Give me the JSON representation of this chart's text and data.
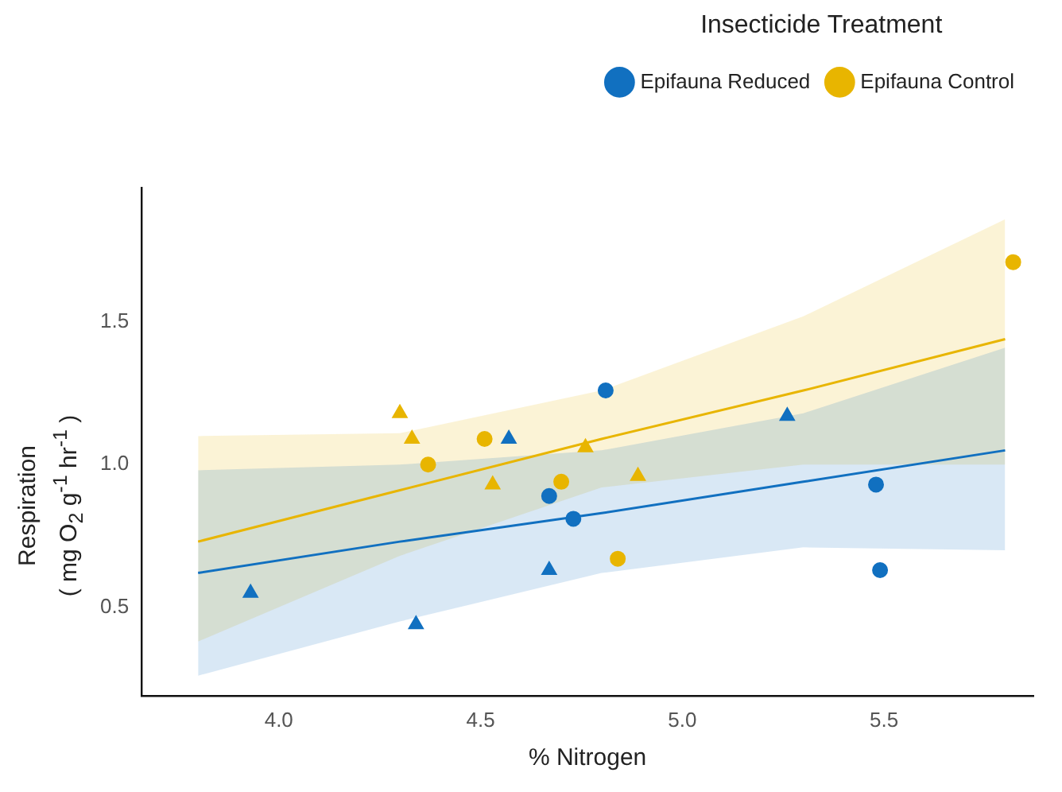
{
  "chart_data": {
    "type": "scatter",
    "xlabel": "% Nitrogen",
    "ylabel": "Respiration\n( mg O$_{2}$ g$^{-1}$ hr$^{-1}$ )",
    "legend_title": "Insecticide Treatment",
    "legend": "top right",
    "grid": false,
    "xlim": [
      3.66,
      5.87
    ],
    "xticks": [
      {
        "value": 4.0,
        "label": "4.0"
      },
      {
        "value": 4.5,
        "label": "4.5"
      },
      {
        "value": 5.0,
        "label": "5.0"
      },
      {
        "value": 5.5,
        "label": "5.5"
      }
    ],
    "ylim": [
      0.19,
      1.97
    ],
    "yticks": [
      0.5,
      {
        "value": 1.0,
        "label": "1.0"
      },
      1.5
    ],
    "series": [
      {
        "name": "Epifauna Reduced",
        "color": "#1170c0",
        "marker": "circle",
        "x": [
          4.81,
          4.67,
          4.73,
          5.48,
          5.49
        ],
        "values": [
          1.26,
          0.89,
          0.81,
          0.93,
          0.63
        ]
      },
      {
        "color": "#1170c0",
        "marker": "triangle",
        "x": [
          3.93,
          4.34,
          4.57,
          4.67,
          5.26
        ],
        "values": [
          0.55,
          0.44,
          1.09,
          0.63,
          1.17
        ]
      },
      {
        "name": "Epifauna Control",
        "color": "#e8b500",
        "marker": "circle",
        "x": [
          4.37,
          4.51,
          4.7,
          4.84,
          5.82
        ],
        "values": [
          1.0,
          1.09,
          0.94,
          0.67,
          1.71
        ]
      },
      {
        "color": "#e8b500",
        "marker": "triangle",
        "x": [
          4.3,
          4.33,
          4.53,
          4.76,
          4.89
        ],
        "values": [
          1.18,
          1.09,
          0.93,
          1.06,
          0.96
        ]
      },
      {
        "type": "line",
        "color": "#1170c0",
        "marker": "none",
        "x": [
          3.8,
          4.3,
          4.8,
          5.3,
          5.8
        ],
        "values": [
          0.62,
          0.73,
          0.83,
          0.94,
          1.05
        ],
        "lower": [
          0.26,
          0.45,
          0.62,
          0.71,
          0.7
        ],
        "upper": [
          0.98,
          1.0,
          1.05,
          1.18,
          1.41
        ]
      },
      {
        "type": "line",
        "color": "#e8b500",
        "marker": "none",
        "x": [
          3.8,
          4.3,
          4.8,
          5.3,
          5.8
        ],
        "values": [
          0.73,
          0.91,
          1.09,
          1.26,
          1.44
        ],
        "lower": [
          0.38,
          0.68,
          0.92,
          1.0,
          1.0
        ],
        "upper": [
          1.1,
          1.11,
          1.26,
          1.52,
          1.86
        ]
      }
    ]
  }
}
